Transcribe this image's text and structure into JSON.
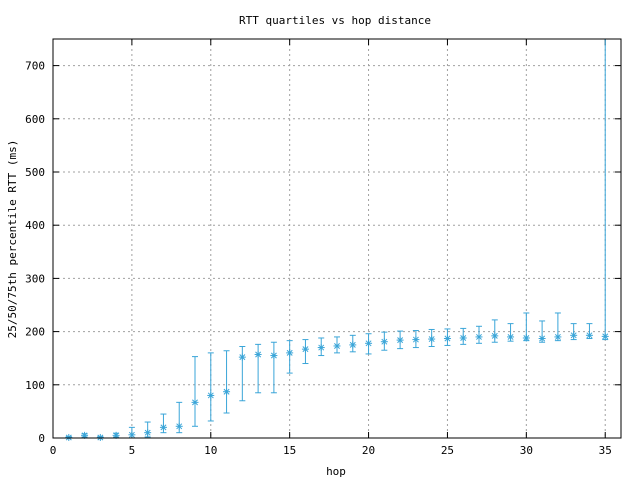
{
  "chart_data": {
    "type": "errorbar",
    "title": "RTT quartiles vs hop distance",
    "xlabel": "hop",
    "ylabel": "25/50/75th percentile RTT (ms)",
    "xlim": [
      0,
      36
    ],
    "ylim": [
      0,
      750
    ],
    "xticks": [
      0,
      5,
      10,
      15,
      20,
      25,
      30,
      35
    ],
    "yticks": [
      0,
      100,
      200,
      300,
      400,
      500,
      600,
      700
    ],
    "grid": true,
    "color": "#3aa5d8",
    "points": [
      {
        "x": 1,
        "p25": 0,
        "median": 1,
        "p75": 3
      },
      {
        "x": 2,
        "p25": 2,
        "median": 5,
        "p75": 8
      },
      {
        "x": 3,
        "p25": 0,
        "median": 1,
        "p75": 3
      },
      {
        "x": 4,
        "p25": 2,
        "median": 5,
        "p75": 9
      },
      {
        "x": 5,
        "p25": 0,
        "median": 6,
        "p75": 20
      },
      {
        "x": 6,
        "p25": 2,
        "median": 10,
        "p75": 30
      },
      {
        "x": 7,
        "p25": 10,
        "median": 20,
        "p75": 45
      },
      {
        "x": 8,
        "p25": 10,
        "median": 22,
        "p75": 67
      },
      {
        "x": 9,
        "p25": 22,
        "median": 67,
        "p75": 153
      },
      {
        "x": 10,
        "p25": 32,
        "median": 80,
        "p75": 160
      },
      {
        "x": 11,
        "p25": 47,
        "median": 87,
        "p75": 164
      },
      {
        "x": 12,
        "p25": 70,
        "median": 152,
        "p75": 172
      },
      {
        "x": 13,
        "p25": 85,
        "median": 157,
        "p75": 176
      },
      {
        "x": 14,
        "p25": 85,
        "median": 155,
        "p75": 180
      },
      {
        "x": 15,
        "p25": 122,
        "median": 160,
        "p75": 183
      },
      {
        "x": 16,
        "p25": 140,
        "median": 167,
        "p75": 185
      },
      {
        "x": 17,
        "p25": 155,
        "median": 170,
        "p75": 188
      },
      {
        "x": 18,
        "p25": 160,
        "median": 173,
        "p75": 190
      },
      {
        "x": 19,
        "p25": 162,
        "median": 175,
        "p75": 193
      },
      {
        "x": 20,
        "p25": 158,
        "median": 178,
        "p75": 196
      },
      {
        "x": 21,
        "p25": 165,
        "median": 181,
        "p75": 199
      },
      {
        "x": 22,
        "p25": 168,
        "median": 184,
        "p75": 201
      },
      {
        "x": 23,
        "p25": 170,
        "median": 185,
        "p75": 202
      },
      {
        "x": 24,
        "p25": 172,
        "median": 186,
        "p75": 204
      },
      {
        "x": 25,
        "p25": 174,
        "median": 187,
        "p75": 205
      },
      {
        "x": 26,
        "p25": 176,
        "median": 188,
        "p75": 206
      },
      {
        "x": 27,
        "p25": 178,
        "median": 190,
        "p75": 210
      },
      {
        "x": 28,
        "p25": 180,
        "median": 192,
        "p75": 222
      },
      {
        "x": 29,
        "p25": 182,
        "median": 190,
        "p75": 215
      },
      {
        "x": 30,
        "p25": 183,
        "median": 188,
        "p75": 235
      },
      {
        "x": 31,
        "p25": 180,
        "median": 187,
        "p75": 220
      },
      {
        "x": 32,
        "p25": 183,
        "median": 190,
        "p75": 235
      },
      {
        "x": 33,
        "p25": 185,
        "median": 193,
        "p75": 215
      },
      {
        "x": 34,
        "p25": 187,
        "median": 193,
        "p75": 215
      },
      {
        "x": 35,
        "p25": 185,
        "median": 191,
        "p75": 750
      }
    ]
  }
}
